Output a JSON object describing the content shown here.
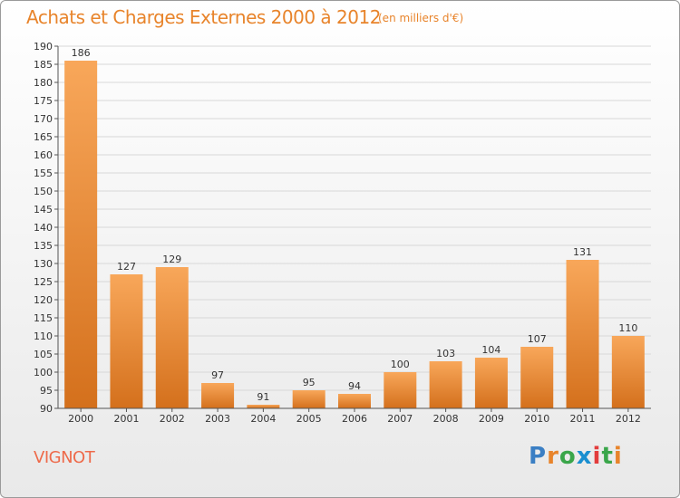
{
  "header": {
    "title": "Achats et Charges Externes 2000 à 2012",
    "subtitle": "(en milliers d'€)"
  },
  "commune": "VIGNOT",
  "brand": {
    "logo_text": "Proxiti",
    "letter_colors": [
      "#3b7fc4",
      "#e8842b",
      "#3aa64a",
      "#1a8fd0",
      "#e23c3c",
      "#3aa64a",
      "#e8842b"
    ]
  },
  "colors": {
    "bar_light": "#f8a75a",
    "bar_dark": "#d4701c",
    "axis": "#555555",
    "grid": "#d8d8d8"
  },
  "chart_data": {
    "type": "bar",
    "title": "Achats et Charges Externes 2000 à 2012",
    "subtitle": "(en milliers d'€)",
    "categories": [
      "2000",
      "2001",
      "2002",
      "2003",
      "2004",
      "2005",
      "2006",
      "2007",
      "2008",
      "2009",
      "2010",
      "2011",
      "2012"
    ],
    "values": [
      186,
      127,
      129,
      97,
      91,
      95,
      94,
      100,
      103,
      104,
      107,
      131,
      110
    ],
    "ylim": [
      90,
      190
    ],
    "ytick_step": 5,
    "grid": true
  }
}
